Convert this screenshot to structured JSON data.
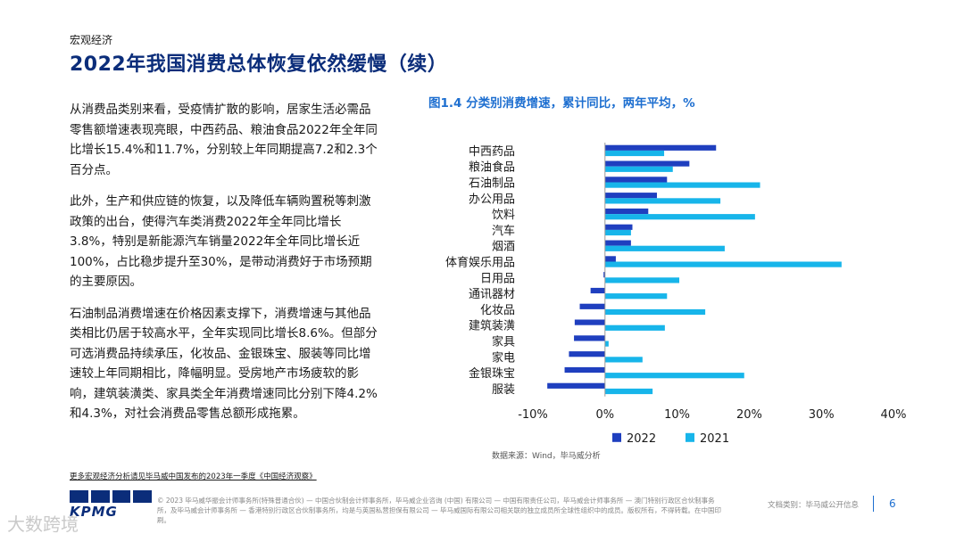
{
  "header": {
    "section": "宏观经济",
    "title": "2022年我国消费总体恢复依然缓慢（续）"
  },
  "body": {
    "paragraphs": [
      "从消费品类别来看，受疫情扩散的影响，居家生活必需品零售额增速表现亮眼，中西药品、粮油食品2022年全年同比增长15.4%和11.7%，分别较上年同期提高7.2和2.3个百分点。",
      "此外，生产和供应链的恢复，以及降低车辆购置税等刺激政策的出台，使得汽车类消费2022年全年同比增长3.8%，特别是新能源汽车销量2022年全年同比增长近100%，占比稳步提升至30%，是带动消费好于市场预期的主要原因。",
      "石油制品消费增速在价格因素支撑下，消费增速与其他品类相比仍居于较高水平，全年实现同比增长8.6%。但部分可选消费品持续承压，化妆品、金银珠宝、服装等同比增速较上年同期相比，降幅明显。受房地产市场疲软的影响，建筑装潢类、家具类全年消费增速同比分别下降4.2%和4.3%，对社会消费品零售总额形成拖累。"
    ]
  },
  "chart_title": "图1.4 分类别消费增速，累计同比，两年平均，%",
  "chart_data": {
    "type": "bar",
    "orientation": "horizontal",
    "categories": [
      "中西药品",
      "粮油食品",
      "石油制品",
      "办公用品",
      "饮料",
      "汽车",
      "烟酒",
      "体育娱乐用品",
      "日用品",
      "通讯器材",
      "化妆品",
      "建筑装潢",
      "家具",
      "家电",
      "金银珠宝",
      "服装"
    ],
    "series": [
      {
        "name": "2022",
        "color": "#1f3fbf",
        "values": [
          15.4,
          11.7,
          8.6,
          7.2,
          6.0,
          3.8,
          3.6,
          1.5,
          -0.2,
          -2.0,
          -3.5,
          -4.2,
          -4.3,
          -5.0,
          -5.6,
          -8.0
        ]
      },
      {
        "name": "2021",
        "color": "#17b5ea",
        "values": [
          8.2,
          9.4,
          21.5,
          16.0,
          20.8,
          3.6,
          16.6,
          32.8,
          10.3,
          8.6,
          13.9,
          8.3,
          0.5,
          5.2,
          19.3,
          6.6
        ]
      }
    ],
    "xlim": [
      -10,
      40
    ],
    "xticks": [
      "-10%",
      "0%",
      "10%",
      "20%",
      "30%",
      "40%"
    ],
    "xtick_values": [
      -10,
      0,
      10,
      20,
      30,
      40
    ],
    "legend_position": "bottom",
    "grid": false
  },
  "source": "数据来源：Wind，毕马威分析",
  "footnote": "更多宏观经济分析请见毕马威中国发布的2023年一季度《中国经济观察》",
  "footer": {
    "logo_text": "KPMG",
    "disclaimer": "© 2023 毕马威华振会计师事务所(特殊普通合伙) — 中国合伙制会计师事务所，毕马威企业咨询 (中国) 有限公司 — 中国有限责任公司，毕马威会计师事务所 — 澳门特别行政区合伙制事务所，及毕马威会计师事务所 — 香港特别行政区合伙制事务所，均是与英国私营担保有限公司 — 毕马威国际有限公司相关联的独立成员所全球性组织中的成员。版权所有，不得转载。在中国印刷。",
    "doc_class": "文档类别：毕马威公开信息",
    "page_number": "6"
  },
  "watermark": "大数跨境"
}
